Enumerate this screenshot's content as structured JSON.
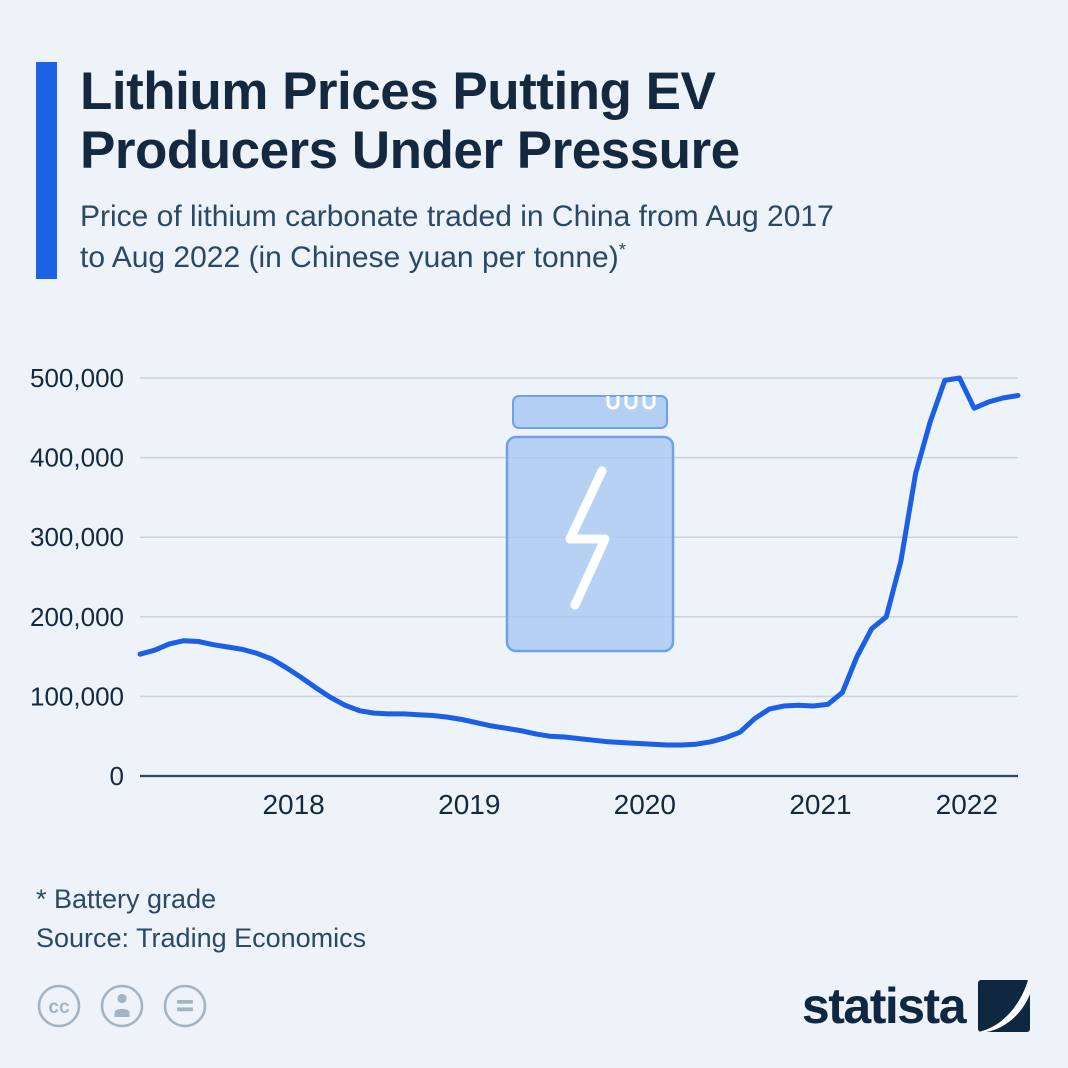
{
  "header": {
    "title_line1": "Lithium Prices Putting EV",
    "title_line2": "Producers Under Pressure",
    "subtitle_line1": "Price of lithium carbonate traded in China from Aug 2017",
    "subtitle_line2": "to Aug 2022 (in Chinese yuan per tonne)",
    "footnote_marker": "*"
  },
  "chart_data": {
    "type": "line",
    "title": "Lithium Prices Putting EV Producers Under Pressure",
    "subtitle": "Price of lithium carbonate traded in China from Aug 2017 to Aug 2022 (in Chinese yuan per tonne)",
    "unit": "Chinese yuan per tonne",
    "ylim": [
      0,
      500000
    ],
    "grid": true,
    "legend": "none",
    "x": [
      "2017-08",
      "2017-09",
      "2017-10",
      "2017-11",
      "2017-12",
      "2018-01",
      "2018-02",
      "2018-03",
      "2018-04",
      "2018-05",
      "2018-06",
      "2018-07",
      "2018-08",
      "2018-09",
      "2018-10",
      "2018-11",
      "2018-12",
      "2019-01",
      "2019-02",
      "2019-03",
      "2019-04",
      "2019-05",
      "2019-06",
      "2019-07",
      "2019-08",
      "2019-09",
      "2019-10",
      "2019-11",
      "2019-12",
      "2020-01",
      "2020-02",
      "2020-03",
      "2020-04",
      "2020-05",
      "2020-06",
      "2020-07",
      "2020-08",
      "2020-09",
      "2020-10",
      "2020-11",
      "2020-12",
      "2021-01",
      "2021-02",
      "2021-03",
      "2021-04",
      "2021-05",
      "2021-06",
      "2021-07",
      "2021-08",
      "2021-09",
      "2021-10",
      "2021-11",
      "2021-12",
      "2022-01",
      "2022-02",
      "2022-03",
      "2022-04",
      "2022-05",
      "2022-06",
      "2022-07",
      "2022-08"
    ],
    "xticks": [
      "2018",
      "2019",
      "2020",
      "2021",
      "2022"
    ],
    "yticks": [
      {
        "value": 0,
        "label": "0"
      },
      {
        "value": 100000,
        "label": "100,000"
      },
      {
        "value": 200000,
        "label": "200,000"
      },
      {
        "value": 300000,
        "label": "300,000"
      },
      {
        "value": 400000,
        "label": "400,000"
      },
      {
        "value": 500000,
        "label": "500,000"
      }
    ],
    "series": [
      {
        "name": "Lithium carbonate price (CNY per tonne)",
        "color": "#1a5fe4",
        "values": [
          153000,
          158000,
          166000,
          170000,
          169000,
          165000,
          162000,
          159000,
          154000,
          147000,
          136000,
          124000,
          111000,
          99000,
          89000,
          82000,
          79000,
          78000,
          78000,
          77000,
          76000,
          74000,
          71000,
          67000,
          63000,
          60000,
          57000,
          53000,
          50000,
          49000,
          47000,
          45000,
          43000,
          42000,
          41000,
          40000,
          39000,
          39000,
          40000,
          43000,
          48000,
          55000,
          72000,
          84000,
          88000,
          89000,
          88000,
          90000,
          105000,
          150000,
          185000,
          200000,
          270000,
          380000,
          445000,
          497000,
          500000,
          462000,
          470000,
          475000,
          478000
        ]
      }
    ]
  },
  "footer": {
    "note": "* Battery grade",
    "source": "Source: Trading Economics",
    "cc_glyph": "cc",
    "license_icons": [
      "cc-icon",
      "attribution-icon",
      "no-derivatives-icon"
    ],
    "brand": "statista"
  },
  "colors": {
    "background": "#edf3f9",
    "accent_bar": "#1c63e6",
    "line": "#1a5fe4",
    "grid": "#c8d3de",
    "axis": "#31455a",
    "title": "#14293f",
    "subtitle": "#2b4867",
    "battery_fill": "#a9c8f3",
    "battery_stroke": "#6fa0e8"
  }
}
